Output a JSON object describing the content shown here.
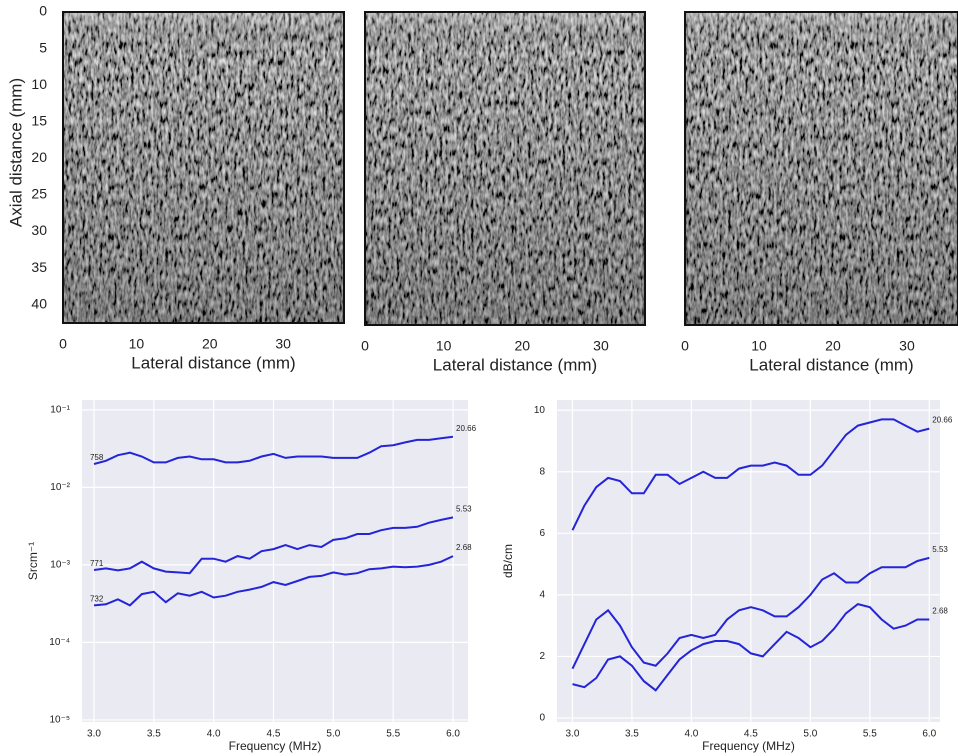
{
  "chart_data": [
    {
      "type": "image",
      "xlim": [
        0,
        38.3
      ],
      "xticks": [
        0,
        10,
        20,
        30
      ],
      "xlabel": "Lateral distance (mm)",
      "ylim": [
        0,
        42.5
      ],
      "yinvert": true,
      "yticks": [
        0,
        5,
        10,
        15,
        20,
        25,
        30,
        35,
        40
      ],
      "ylabel": "Axial distance (mm)"
    },
    {
      "type": "image",
      "xlim": [
        0,
        35.6
      ],
      "xticks": [
        0,
        10,
        20,
        30
      ],
      "xlabel": "Lateral distance (mm)"
    },
    {
      "type": "image",
      "xlim": [
        0,
        36.9
      ],
      "xticks": [
        0,
        10,
        20,
        30
      ],
      "xlabel": "Lateral distance (mm)"
    },
    {
      "type": "line",
      "xlabel": "Frequency (MHz)",
      "ylabel": "Srcm⁻¹",
      "ylog": true,
      "grid": true,
      "xlim": [
        2.9,
        6.125
      ],
      "ylim": [
        9.4e-06,
        0.134
      ],
      "xticks": [
        {
          "value": 3,
          "label": "3.0"
        },
        3.5,
        {
          "value": 4,
          "label": "4.0"
        },
        4.5,
        {
          "value": 5,
          "label": "5.0"
        },
        5.5,
        {
          "value": 6,
          "label": "6.0"
        }
      ],
      "yticks": [
        {
          "value": 1e-05,
          "label": "10⁻⁵"
        },
        {
          "value": 0.0001,
          "label": "10⁻⁴"
        },
        {
          "value": 0.001,
          "label": "10⁻³"
        },
        {
          "value": 0.01,
          "label": "10⁻²"
        },
        {
          "value": 0.1,
          "label": "10⁻¹"
        }
      ],
      "x": [
        3,
        3.1,
        3.2,
        3.3,
        3.4,
        3.5,
        3.6,
        3.7,
        3.8,
        3.9,
        4,
        4.1,
        4.2,
        4.3,
        4.4,
        4.5,
        4.6,
        4.7,
        4.8,
        4.9,
        5,
        5.1,
        5.2,
        5.3,
        5.4,
        5.5,
        5.6,
        5.7,
        5.8,
        5.9,
        6
      ],
      "series": [
        {
          "color": "#2424d8",
          "start_label": "758",
          "end_label": "20.66",
          "values": [
            0.02,
            0.022,
            0.026,
            0.028,
            0.025,
            0.021,
            0.021,
            0.024,
            0.025,
            0.023,
            0.023,
            0.021,
            0.021,
            0.022,
            0.025,
            0.027,
            0.024,
            0.025,
            0.025,
            0.025,
            0.024,
            0.024,
            0.024,
            0.028,
            0.034,
            0.035,
            0.038,
            0.041,
            0.041,
            0.043,
            0.045
          ]
        },
        {
          "color": "#2424d8",
          "start_label": "771",
          "end_label": "5.53",
          "values": [
            0.00086,
            0.0009,
            0.00085,
            0.0009,
            0.0011,
            0.0009,
            0.00082,
            0.0008,
            0.00078,
            0.0012,
            0.0012,
            0.0011,
            0.0013,
            0.0012,
            0.0015,
            0.0016,
            0.0018,
            0.0016,
            0.0018,
            0.0017,
            0.0021,
            0.0022,
            0.0025,
            0.0025,
            0.0028,
            0.003,
            0.003,
            0.0031,
            0.0035,
            0.0038,
            0.0041
          ]
        },
        {
          "color": "#2424d8",
          "start_label": "732",
          "end_label": "2.68",
          "values": [
            0.0003,
            0.00031,
            0.00036,
            0.0003,
            0.00042,
            0.00045,
            0.00033,
            0.00043,
            0.0004,
            0.00045,
            0.00038,
            0.0004,
            0.00045,
            0.00048,
            0.00052,
            0.0006,
            0.00055,
            0.00062,
            0.0007,
            0.00072,
            0.0008,
            0.00075,
            0.00078,
            0.00088,
            0.0009,
            0.00095,
            0.00093,
            0.00095,
            0.001,
            0.0011,
            0.0013
          ]
        }
      ]
    },
    {
      "type": "line",
      "xlabel": "Frequency (MHz)",
      "ylabel": "dB/cm",
      "grid": true,
      "xlim": [
        2.87,
        6.09
      ],
      "ylim": [
        -0.13,
        10.33
      ],
      "xticks": [
        {
          "value": 3,
          "label": "3.0"
        },
        3.5,
        {
          "value": 4,
          "label": "4.0"
        },
        4.5,
        {
          "value": 5,
          "label": "5.0"
        },
        5.5,
        {
          "value": 6,
          "label": "6.0"
        }
      ],
      "yticks": [
        0,
        2,
        4,
        6,
        8,
        10
      ],
      "x": [
        3,
        3.1,
        3.2,
        3.3,
        3.4,
        3.5,
        3.6,
        3.7,
        3.8,
        3.9,
        4,
        4.1,
        4.2,
        4.3,
        4.4,
        4.5,
        4.6,
        4.7,
        4.8,
        4.9,
        5,
        5.1,
        5.2,
        5.3,
        5.4,
        5.5,
        5.6,
        5.7,
        5.8,
        5.9,
        6
      ],
      "series": [
        {
          "color": "#2424d8",
          "end_label": "20.66",
          "values": [
            6.1,
            6.9,
            7.5,
            7.8,
            7.7,
            7.3,
            7.3,
            7.9,
            7.9,
            7.6,
            7.8,
            8.0,
            7.8,
            7.8,
            8.1,
            8.2,
            8.2,
            8.3,
            8.2,
            7.9,
            7.9,
            8.2,
            8.7,
            9.2,
            9.5,
            9.6,
            9.7,
            9.7,
            9.5,
            9.3,
            9.4
          ]
        },
        {
          "color": "#2424d8",
          "end_label": "5.53",
          "values": [
            1.6,
            2.4,
            3.2,
            3.5,
            3.0,
            2.3,
            1.8,
            1.7,
            2.1,
            2.6,
            2.7,
            2.6,
            2.7,
            3.2,
            3.5,
            3.6,
            3.5,
            3.3,
            3.3,
            3.6,
            4.0,
            4.5,
            4.7,
            4.4,
            4.4,
            4.7,
            4.9,
            4.9,
            4.9,
            5.1,
            5.2
          ]
        },
        {
          "color": "#2424d8",
          "end_label": "2.68",
          "values": [
            1.1,
            1.0,
            1.3,
            1.9,
            2.0,
            1.7,
            1.2,
            0.9,
            1.4,
            1.9,
            2.2,
            2.4,
            2.5,
            2.5,
            2.4,
            2.1,
            2.0,
            2.4,
            2.8,
            2.6,
            2.3,
            2.5,
            2.9,
            3.4,
            3.7,
            3.6,
            3.2,
            2.9,
            3.0,
            3.2,
            3.2
          ]
        }
      ]
    }
  ]
}
